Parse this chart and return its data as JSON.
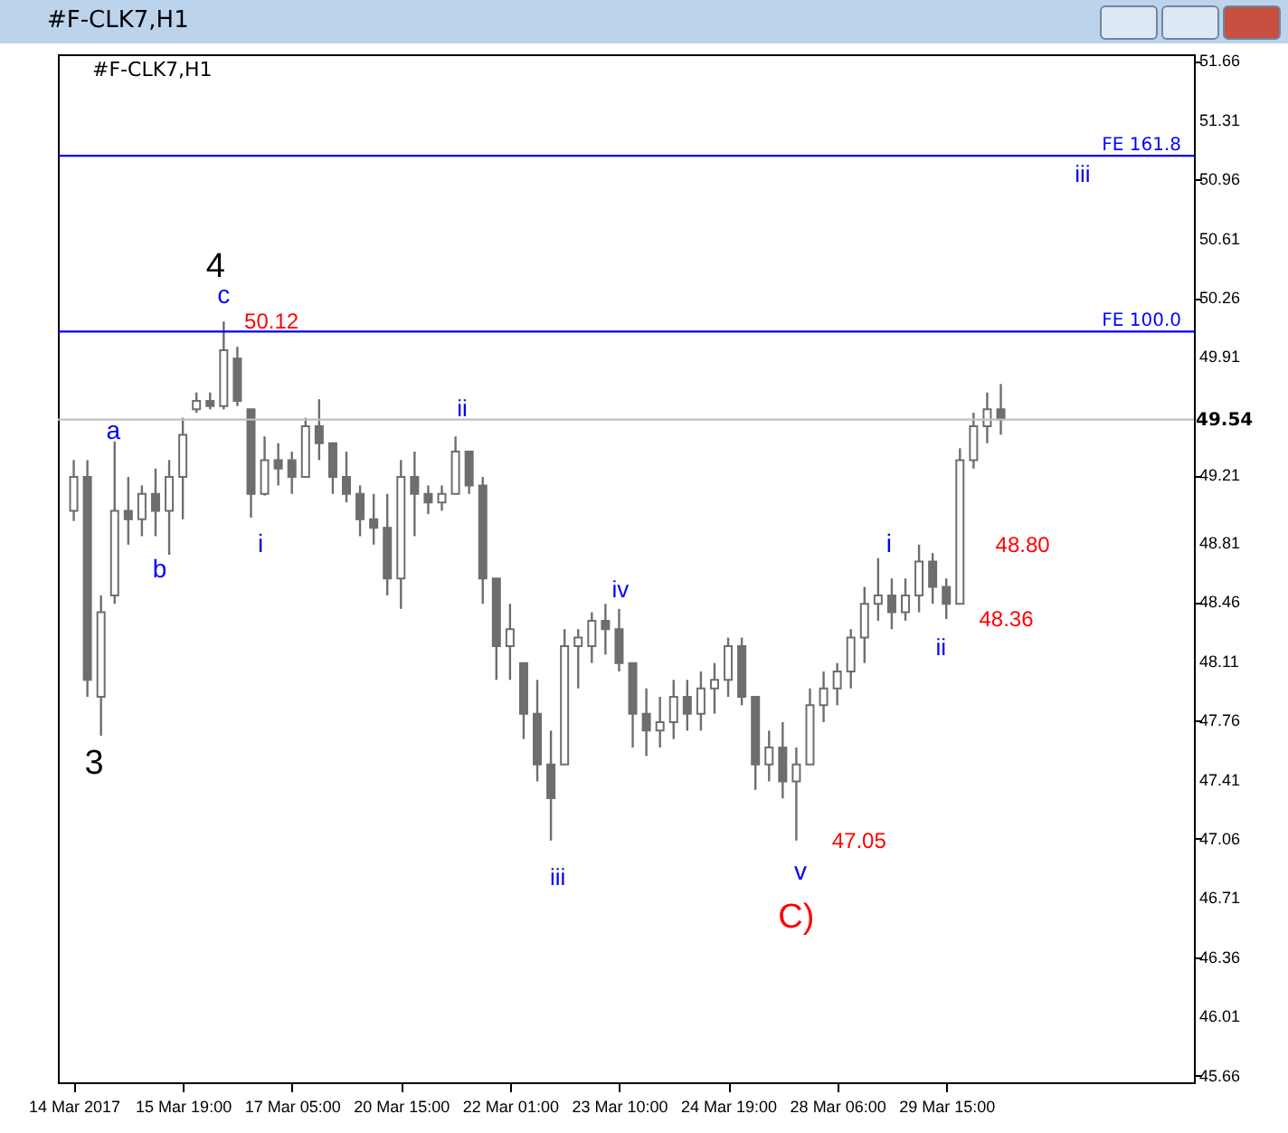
{
  "chart_data": {
    "type": "candlestick",
    "title": "#F-CLK7,H1",
    "color": "#6e6e6e",
    "categories": [
      "14 Mar 2017",
      null,
      null,
      null,
      null,
      null,
      null,
      null,
      "15 Mar 19:00",
      null,
      null,
      null,
      null,
      null,
      null,
      null,
      "17 Mar 05:00",
      null,
      null,
      null,
      null,
      null,
      null,
      null,
      "20 Mar 15:00",
      null,
      null,
      null,
      null,
      null,
      null,
      null,
      "22 Mar 01:00",
      null,
      null,
      null,
      null,
      null,
      null,
      null,
      "23 Mar 10:00",
      null,
      null,
      null,
      null,
      null,
      null,
      null,
      "24 Mar 19:00",
      null,
      null,
      null,
      null,
      null,
      null,
      null,
      "28 Mar 06:00",
      null,
      null,
      null,
      null,
      null,
      null,
      null,
      "29 Mar 15:00",
      null,
      null,
      null,
      null,
      null,
      null,
      null,
      null,
      null,
      null,
      null,
      null,
      null,
      null,
      null,
      null,
      null
    ],
    "ohlc": [
      [
        49.0,
        49.3,
        48.94,
        49.2
      ],
      [
        49.2,
        49.3,
        47.9,
        48.0
      ],
      [
        47.9,
        48.5,
        47.67,
        48.4
      ],
      [
        48.5,
        49.41,
        48.45,
        49.0
      ],
      [
        49.0,
        49.2,
        48.8,
        48.95
      ],
      [
        48.95,
        49.15,
        48.85,
        49.1
      ],
      [
        49.1,
        49.25,
        48.85,
        49.0
      ],
      [
        49.0,
        49.3,
        48.74,
        49.2
      ],
      [
        49.2,
        49.55,
        48.95,
        49.45
      ],
      [
        49.6,
        49.7,
        49.58,
        49.65
      ],
      [
        49.65,
        49.7,
        49.6,
        49.62
      ],
      [
        49.62,
        50.12,
        49.6,
        49.95
      ],
      [
        49.9,
        49.97,
        49.62,
        49.65
      ],
      [
        49.6,
        49.6,
        48.96,
        49.1
      ],
      [
        49.1,
        49.44,
        49.09,
        49.3
      ],
      [
        49.3,
        49.4,
        49.15,
        49.25
      ],
      [
        49.3,
        49.35,
        49.1,
        49.2
      ],
      [
        49.2,
        49.55,
        49.2,
        49.5
      ],
      [
        49.5,
        49.66,
        49.3,
        49.4
      ],
      [
        49.4,
        49.4,
        49.1,
        49.2
      ],
      [
        49.2,
        49.35,
        49.05,
        49.1
      ],
      [
        49.1,
        49.15,
        48.85,
        48.95
      ],
      [
        48.95,
        49.1,
        48.8,
        48.9
      ],
      [
        48.9,
        49.1,
        48.5,
        48.6
      ],
      [
        48.6,
        49.3,
        48.42,
        49.2
      ],
      [
        49.2,
        49.35,
        48.85,
        49.1
      ],
      [
        49.1,
        49.15,
        48.98,
        49.05
      ],
      [
        49.05,
        49.15,
        49.0,
        49.1
      ],
      [
        49.1,
        49.44,
        49.1,
        49.35
      ],
      [
        49.35,
        49.35,
        49.1,
        49.15
      ],
      [
        49.15,
        49.2,
        48.45,
        48.6
      ],
      [
        48.6,
        48.6,
        48.0,
        48.2
      ],
      [
        48.2,
        48.45,
        48.0,
        48.3
      ],
      [
        48.1,
        48.1,
        47.65,
        47.8
      ],
      [
        47.8,
        48.0,
        47.4,
        47.5
      ],
      [
        47.5,
        47.7,
        47.05,
        47.3
      ],
      [
        47.5,
        48.3,
        47.5,
        48.2
      ],
      [
        48.2,
        48.3,
        47.95,
        48.25
      ],
      [
        48.2,
        48.4,
        48.1,
        48.35
      ],
      [
        48.35,
        48.45,
        48.15,
        48.3
      ],
      [
        48.3,
        48.42,
        48.05,
        48.1
      ],
      [
        48.1,
        48.1,
        47.6,
        47.8
      ],
      [
        47.8,
        47.95,
        47.55,
        47.7
      ],
      [
        47.7,
        47.9,
        47.6,
        47.75
      ],
      [
        47.75,
        48.0,
        47.65,
        47.9
      ],
      [
        47.9,
        48.0,
        47.7,
        47.8
      ],
      [
        47.8,
        48.05,
        47.7,
        47.95
      ],
      [
        47.95,
        48.1,
        47.8,
        48.0
      ],
      [
        48.0,
        48.25,
        47.9,
        48.2
      ],
      [
        48.2,
        48.25,
        47.85,
        47.9
      ],
      [
        47.9,
        47.9,
        47.35,
        47.5
      ],
      [
        47.5,
        47.7,
        47.4,
        47.6
      ],
      [
        47.6,
        47.75,
        47.3,
        47.4
      ],
      [
        47.4,
        47.6,
        47.05,
        47.5
      ],
      [
        47.5,
        47.95,
        47.5,
        47.85
      ],
      [
        47.85,
        48.05,
        47.75,
        47.95
      ],
      [
        47.95,
        48.1,
        47.85,
        48.05
      ],
      [
        48.05,
        48.3,
        47.95,
        48.25
      ],
      [
        48.25,
        48.55,
        48.1,
        48.45
      ],
      [
        48.45,
        48.72,
        48.35,
        48.5
      ],
      [
        48.5,
        48.6,
        48.3,
        48.4
      ],
      [
        48.4,
        48.6,
        48.35,
        48.5
      ],
      [
        48.5,
        48.8,
        48.4,
        48.7
      ],
      [
        48.7,
        48.75,
        48.45,
        48.55
      ],
      [
        48.55,
        48.6,
        48.36,
        48.45
      ],
      [
        48.45,
        49.37,
        48.45,
        49.3
      ],
      [
        49.3,
        49.58,
        49.25,
        49.5
      ],
      [
        49.5,
        49.7,
        49.4,
        49.6
      ],
      [
        49.6,
        49.75,
        49.45,
        49.54
      ],
      null,
      null,
      null,
      null,
      null,
      null,
      null,
      null,
      null,
      null,
      null,
      null,
      null
    ],
    "ylim": [
      45.62,
      51.7
    ],
    "yticks": [
      45.66,
      46.01,
      46.36,
      46.71,
      47.06,
      47.41,
      47.76,
      48.11,
      48.46,
      48.81,
      49.21,
      49.91,
      50.26,
      50.61,
      50.96,
      51.31,
      51.66
    ],
    "ref_lines": [
      {
        "axis": "y",
        "value": 51.1,
        "label": "FE 161.8",
        "color": "#0000ff"
      },
      {
        "axis": "y",
        "value": 50.06,
        "label": "FE 100.0",
        "color": "#0000ff"
      },
      {
        "axis": "y",
        "value": 49.54,
        "label": "49.54",
        "color": "#c0c0c0"
      }
    ],
    "annotations": [
      "4",
      "c",
      "a",
      "b",
      "i",
      "ii",
      "iii",
      "iv",
      "v",
      "C)",
      "i",
      "ii",
      "iii",
      "3",
      "50.12",
      "48.80",
      "48.36",
      "47.05"
    ]
  }
}
